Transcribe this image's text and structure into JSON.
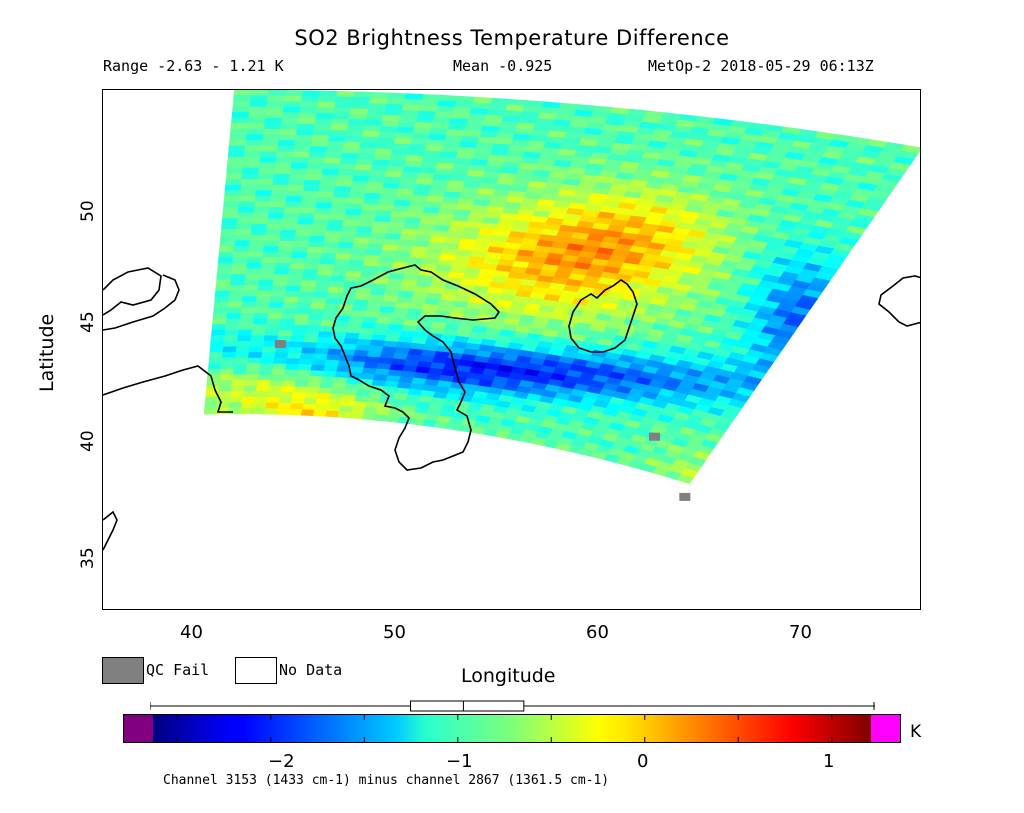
{
  "header": {
    "title": "SO2 Brightness Temperature Difference",
    "range": "Range -2.63 - 1.21 K",
    "mean": "Mean -0.925",
    "satellite": "MetOp-2 2018-05-29 06:13Z"
  },
  "axes": {
    "xlabel": "Longitude",
    "ylabel": "Latitude",
    "xticks": [
      "40",
      "50",
      "60",
      "70"
    ],
    "yticks": [
      "50",
      "45",
      "40",
      "35"
    ],
    "xlim": [
      35.5,
      76
    ],
    "ylim": [
      32.5,
      55
    ]
  },
  "legend": {
    "qc_fail": "QC Fail",
    "no_data": "No Data",
    "qc_color": "#808080"
  },
  "colorbar": {
    "unit": "K",
    "ticks": [
      "−2",
      "−1",
      "0",
      "1"
    ],
    "range": [
      -2.63,
      1.21
    ],
    "below_color": "#800080",
    "above_color": "#ff00ff",
    "boxplot": {
      "min": -2.63,
      "q1": -1.25,
      "median": -0.97,
      "q3": -0.65,
      "max": 1.21
    }
  },
  "footnote": "Channel 3153 (1433 cm-1) minus channel 2867 (1361.5 cm-1)"
}
